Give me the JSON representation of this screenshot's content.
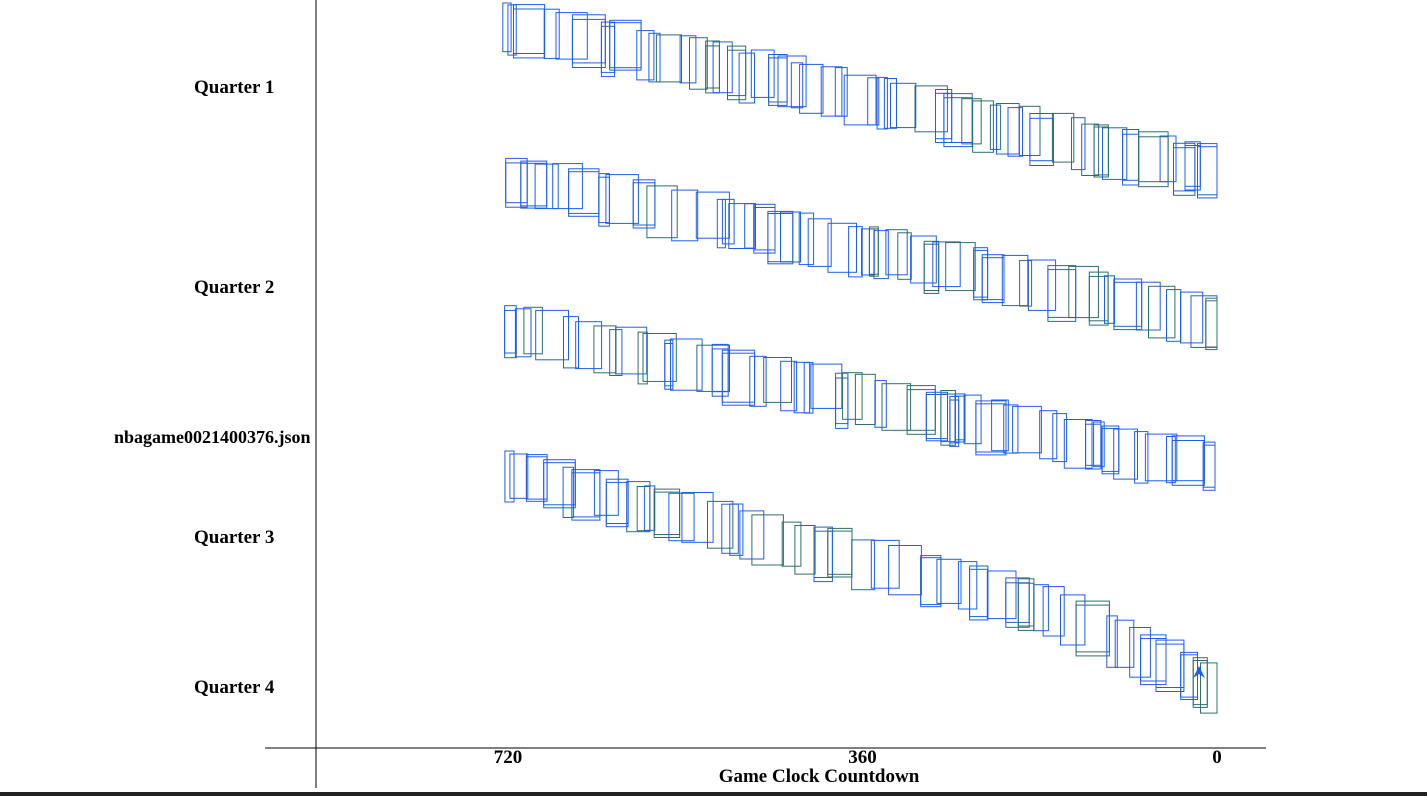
{
  "chart_data": {
    "type": "scatter",
    "file_label": "nbagame0021400376.json",
    "xlabel": "Game Clock Countdown",
    "xlim": [
      720,
      0
    ],
    "x_ticks": [
      720,
      360,
      0
    ],
    "x_tick_labels": [
      "720",
      "360",
      "0"
    ],
    "quarters": [
      {
        "label": "Quarter 1",
        "start_drop": 0,
        "end_drop": 148,
        "curve": "linear"
      },
      {
        "label": "Quarter 2",
        "start_drop": 155,
        "end_drop": 297,
        "curve": "linear"
      },
      {
        "label": "Quarter 3",
        "start_drop": 305,
        "end_drop": 445,
        "curve": "linear"
      },
      {
        "label": "Quarter 4",
        "start_drop": 450,
        "end_drop": 668,
        "curve": "late-steep"
      }
    ],
    "colors": {
      "box_primary": "#1f5ee8",
      "box_secondary": "#2f6f6a",
      "axis": "#000000",
      "text": "#000000",
      "marker": "#1f5ee8"
    },
    "end_marker": "arrow-up"
  }
}
